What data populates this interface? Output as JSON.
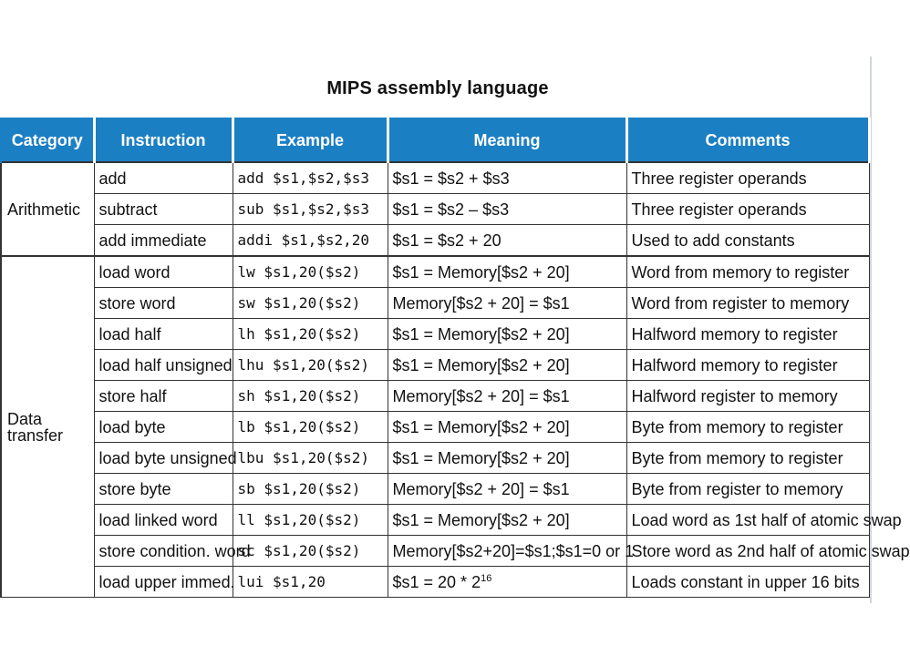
{
  "title": "MIPS assembly language",
  "columns": [
    "Category",
    "Instruction",
    "Example",
    "Meaning",
    "Comments"
  ],
  "groups": [
    {
      "category": "Arithmetic",
      "rows": [
        {
          "instruction": "add",
          "example": "add  $s1,$s2,$s3",
          "meaning": "$s1 = $s2 + $s3",
          "comment": "Three register operands"
        },
        {
          "instruction": "subtract",
          "example": "sub  $s1,$s2,$s3",
          "meaning": "$s1 = $s2 – $s3",
          "comment": "Three register operands"
        },
        {
          "instruction": "add immediate",
          "example": "addi $s1,$s2,20",
          "meaning": "$s1 = $s2 + 20",
          "comment": "Used to add constants"
        }
      ]
    },
    {
      "category": "Data transfer",
      "rows": [
        {
          "instruction": "load word",
          "example": "lw  $s1,20($s2)",
          "meaning": "$s1 = Memory[$s2 + 20]",
          "comment": "Word from memory to register"
        },
        {
          "instruction": "store word",
          "example": "sw  $s1,20($s2)",
          "meaning": "Memory[$s2 + 20] = $s1",
          "comment": "Word from register to memory"
        },
        {
          "instruction": "load half",
          "example": "lh  $s1,20($s2)",
          "meaning": "$s1 = Memory[$s2 + 20]",
          "comment": "Halfword memory to register"
        },
        {
          "instruction": "load half unsigned",
          "example": "lhu  $s1,20($s2)",
          "meaning": "$s1 = Memory[$s2 + 20]",
          "comment": "Halfword memory to register"
        },
        {
          "instruction": "store half",
          "example": "sh  $s1,20($s2)",
          "meaning": "Memory[$s2 + 20] = $s1",
          "comment": "Halfword register to memory"
        },
        {
          "instruction": "load byte",
          "example": "lb  $s1,20($s2)",
          "meaning": "$s1 = Memory[$s2 + 20]",
          "comment": "Byte from memory to register"
        },
        {
          "instruction": "load byte unsigned",
          "example": "lbu  $s1,20($s2)",
          "meaning": "$s1 = Memory[$s2 + 20]",
          "comment": "Byte from memory to register"
        },
        {
          "instruction": "store byte",
          "example": "sb  $s1,20($s2)",
          "meaning": "Memory[$s2 + 20] = $s1",
          "comment": "Byte from register to memory"
        },
        {
          "instruction": "load linked word",
          "example": "ll  $s1,20($s2)",
          "meaning": "$s1 = Memory[$s2 + 20]",
          "comment": "Load word as 1st half of atomic swap"
        },
        {
          "instruction": "store condition. word",
          "example": "sc  $s1,20($s2)",
          "meaning": "Memory[$s2+20]=$s1;$s1=0 or 1",
          "comment": "Store word as 2nd half of atomic swap"
        },
        {
          "instruction": "load upper immed.",
          "example": "lui  $s1,20",
          "meaning": "$s1 = 20 * 2",
          "meaning_sup": "16",
          "comment": "Loads constant in upper 16 bits"
        }
      ]
    }
  ],
  "colors": {
    "header_bg": "#1b7fc4",
    "header_text": "#ffffff"
  }
}
